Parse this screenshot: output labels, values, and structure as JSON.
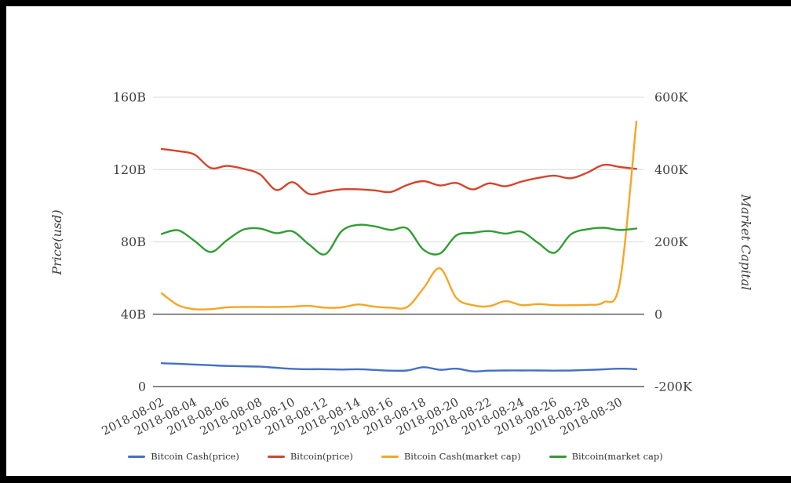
{
  "window": {
    "background_color": "#ffffff",
    "frame_color": "#000000"
  },
  "chart_data": {
    "type": "line",
    "title": "",
    "x": [
      "2018-08-02",
      "2018-08-03",
      "2018-08-04",
      "2018-08-05",
      "2018-08-06",
      "2018-08-07",
      "2018-08-08",
      "2018-08-09",
      "2018-08-10",
      "2018-08-11",
      "2018-08-12",
      "2018-08-13",
      "2018-08-14",
      "2018-08-15",
      "2018-08-16",
      "2018-08-17",
      "2018-08-18",
      "2018-08-19",
      "2018-08-20",
      "2018-08-21",
      "2018-08-22",
      "2018-08-23",
      "2018-08-24",
      "2018-08-25",
      "2018-08-26",
      "2018-08-27",
      "2018-08-28",
      "2018-08-29",
      "2018-08-30",
      "2018-08-31"
    ],
    "x_tick_labels": [
      "2018-08-02",
      "2018-08-04",
      "2018-08-06",
      "2018-08-08",
      "2018-08-10",
      "2018-08-12",
      "2018-08-14",
      "2018-08-16",
      "2018-08-18",
      "2018-08-20",
      "2018-08-22",
      "2018-08-24",
      "2018-08-26",
      "2018-08-28",
      "2018-08-30"
    ],
    "left_axis": {
      "title": "Price(usd)",
      "tick_labels": [
        "0",
        "40B",
        "80B",
        "120B",
        "160B"
      ],
      "tick_values": [
        0,
        40,
        80,
        120,
        160
      ],
      "min": 0,
      "max": 160,
      "unit": "billion USD"
    },
    "right_axis": {
      "title": "Market Capital",
      "tick_labels": [
        "-200K",
        "0",
        "200K",
        "400K",
        "600K"
      ],
      "tick_values": [
        -200,
        0,
        200,
        400,
        600
      ],
      "min": -200,
      "max": 600,
      "unit": "K"
    },
    "grid": true,
    "legend_position": "bottom",
    "series": [
      {
        "name": "Bitcoin Cash(price)",
        "axis": "left",
        "color": "#4470c4",
        "values": [
          12.9,
          12.6,
          12.2,
          11.8,
          11.4,
          11.2,
          11.0,
          10.4,
          9.8,
          9.6,
          9.6,
          9.4,
          9.6,
          9.2,
          8.8,
          8.9,
          10.7,
          9.3,
          9.9,
          8.4,
          8.8,
          8.9,
          8.9,
          8.9,
          8.8,
          8.9,
          9.2,
          9.5,
          9.9,
          9.6
        ]
      },
      {
        "name": "Bitcoin(price)",
        "axis": "left",
        "color": "#d5442b",
        "values": [
          131.4,
          130.2,
          128.3,
          120.9,
          122.0,
          120.4,
          117.4,
          108.7,
          113.0,
          106.5,
          107.8,
          109.1,
          109.1,
          108.5,
          107.6,
          111.5,
          113.6,
          111.2,
          112.6,
          109.0,
          112.4,
          110.8,
          113.4,
          115.4,
          116.6,
          115.2,
          118.3,
          122.6,
          121.4,
          120.4
        ]
      },
      {
        "name": "Bitcoin Cash(market cap)",
        "axis": "right",
        "color": "#f5a623",
        "values": [
          58,
          25,
          14,
          14,
          19,
          20,
          20,
          20,
          21,
          23,
          18,
          19,
          27,
          21,
          18,
          20,
          72,
          127,
          45,
          25,
          22,
          36,
          25,
          28,
          25,
          25,
          26,
          33,
          90,
          533
        ]
      },
      {
        "name": "Bitcoin(market cap)",
        "axis": "right",
        "color": "#2f9e32",
        "values": [
          222,
          232,
          203,
          172,
          205,
          234,
          237,
          224,
          229,
          193,
          166,
          230,
          247,
          243,
          233,
          237,
          178,
          168,
          218,
          225,
          230,
          223,
          228,
          197,
          170,
          221,
          235,
          239,
          233,
          237
        ]
      }
    ]
  },
  "legend": {
    "items": [
      "Bitcoin Cash(price)",
      "Bitcoin(price)",
      "Bitcoin Cash(market cap)",
      "Bitcoin(market cap)"
    ]
  },
  "style_colors": {
    "grid_line": "#d8d8d8",
    "axis_line_dark": "#3f3f3f",
    "tick_text": "#3f3f3f"
  }
}
